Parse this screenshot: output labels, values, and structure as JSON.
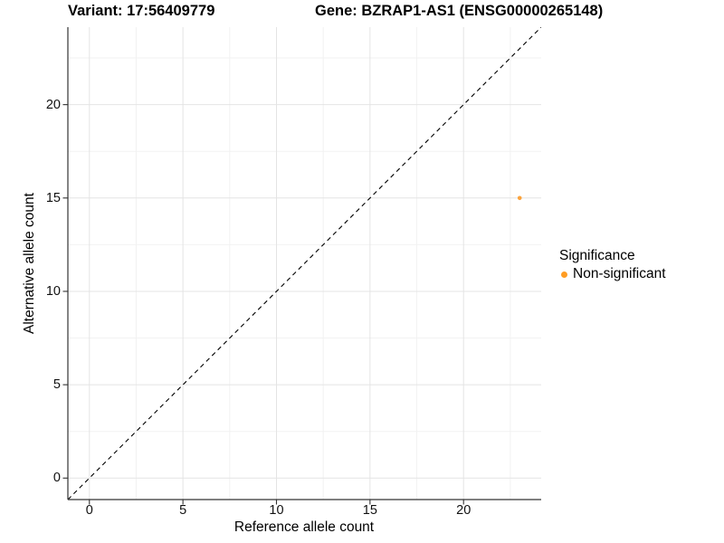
{
  "titles": {
    "variant": "Variant: 17:56409779",
    "gene": "Gene: BZRAP1-AS1 (ENSG00000265148)"
  },
  "colors": {
    "point": "#FBA33C",
    "legend_dot": "#FF9D24",
    "grid_major": "#e4e4e4",
    "grid_minor": "#f2f2f2",
    "axis_line": "#333333",
    "identity_line": "#000000",
    "background": "#ffffff"
  },
  "chart_data": {
    "type": "scatter",
    "xlabel": "Reference allele count",
    "ylabel": "Alternative allele count",
    "xlim": [
      -1.15,
      24.15
    ],
    "ylim": [
      -1.15,
      24.15
    ],
    "x_ticks": [
      0,
      5,
      10,
      15,
      20
    ],
    "y_ticks": [
      0,
      5,
      10,
      15,
      20
    ],
    "x_minor_ticks": [
      2.5,
      7.5,
      12.5,
      17.5,
      22.5
    ],
    "y_minor_ticks": [
      2.5,
      7.5,
      12.5,
      17.5,
      22.5
    ],
    "grid": true,
    "identity_line": {
      "style": "dashed",
      "from": [
        -1.15,
        -1.15
      ],
      "to": [
        24.15,
        24.15
      ]
    },
    "series": [
      {
        "name": "Non-significant",
        "points": [
          {
            "x": 23,
            "y": 15
          }
        ]
      }
    ],
    "legend": {
      "title": "Significance",
      "position": "right",
      "entries": [
        {
          "label": "Non-significant"
        }
      ]
    }
  }
}
